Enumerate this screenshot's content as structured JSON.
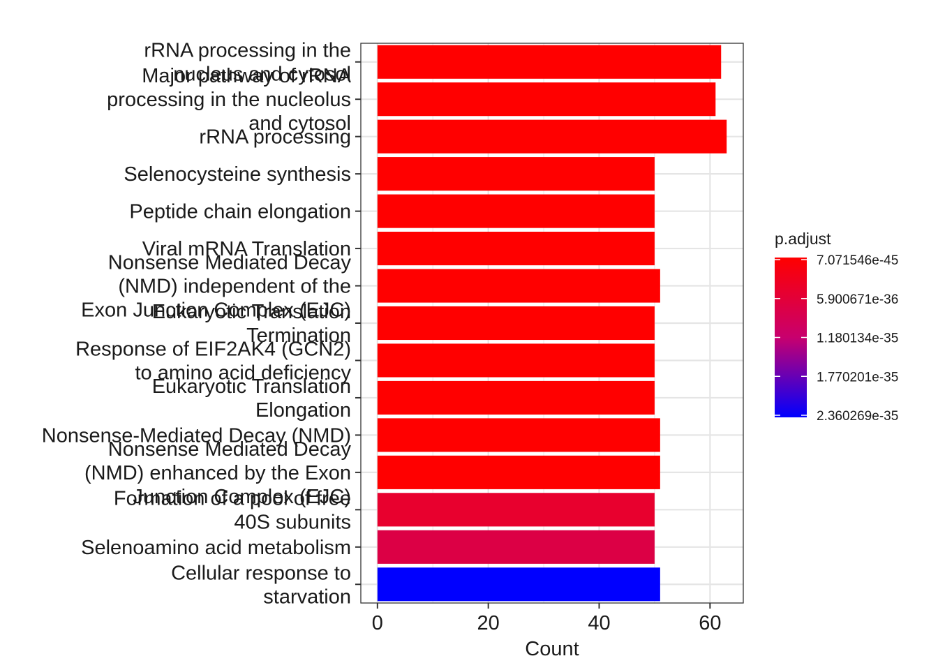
{
  "chart_data": {
    "type": "bar",
    "orientation": "horizontal",
    "xlabel": "Count",
    "ylabel": "",
    "xlim": [
      -3,
      66
    ],
    "xticks": [
      0,
      20,
      40,
      60
    ],
    "grid": true,
    "legend_placement": "right",
    "categories": [
      "rRNA processing in the nucleus and cytosol",
      "Major pathway of rRNA processing in the nucleolus and cytosol",
      "rRNA processing",
      "Selenocysteine synthesis",
      "Peptide chain elongation",
      "Viral mRNA Translation",
      "Nonsense Mediated Decay (NMD) independent of the Exon Junction Complex (EJC)",
      "Eukaryotic Translation Termination",
      "Response of EIF2AK4 (GCN2) to amino acid deficiency",
      "Eukaryotic Translation Elongation",
      "Nonsense-Mediated Decay (NMD)",
      "Nonsense Mediated Decay (NMD) enhanced by the Exon Junction Complex (EJC)",
      "Formation of a pool of free 40S subunits",
      "Selenoamino acid metabolism",
      "Cellular response to starvation"
    ],
    "category_label_lines": [
      [
        "rRNA processing in the",
        "nucleus and cytosol"
      ],
      [
        "Major pathway of rRNA",
        "processing in the nucleolus",
        "and cytosol"
      ],
      [
        "rRNA processing"
      ],
      [
        "Selenocysteine synthesis"
      ],
      [
        "Peptide chain elongation"
      ],
      [
        "Viral mRNA Translation"
      ],
      [
        "Nonsense Mediated Decay",
        "(NMD) independent of the",
        "Exon Junction Complex (EJC)"
      ],
      [
        "Eukaryotic Translation",
        "Termination"
      ],
      [
        "Response of EIF2AK4 (GCN2)",
        "to amino acid deficiency"
      ],
      [
        "Eukaryotic Translation",
        "Elongation"
      ],
      [
        "Nonsense-Mediated Decay (NMD)"
      ],
      [
        "Nonsense Mediated Decay",
        "(NMD) enhanced by the Exon",
        "Junction Complex (EJC)"
      ],
      [
        "Formation of a pool of free",
        "40S subunits"
      ],
      [
        "Selenoamino acid metabolism"
      ],
      [
        "Cellular response to",
        "starvation"
      ]
    ],
    "values": [
      62,
      61,
      63,
      50,
      50,
      50,
      51,
      50,
      50,
      50,
      51,
      51,
      50,
      50,
      51
    ],
    "bar_colors": [
      "#FF0000",
      "#FF0000",
      "#FF0000",
      "#FF0000",
      "#FF0000",
      "#FF0000",
      "#FF0000",
      "#FF0000",
      "#FF0000",
      "#FF0000",
      "#FF0000",
      "#FF0000",
      "#E8002E",
      "#DC0045",
      "#0000FF"
    ],
    "color_scale": {
      "title": "p.adjust",
      "low_color": "#FF0000",
      "high_color": "#0000FF",
      "ticks": [
        "7.071546e-45",
        "5.900671e-36",
        "1.180134e-35",
        "1.770201e-35",
        "2.360269e-35"
      ]
    }
  }
}
